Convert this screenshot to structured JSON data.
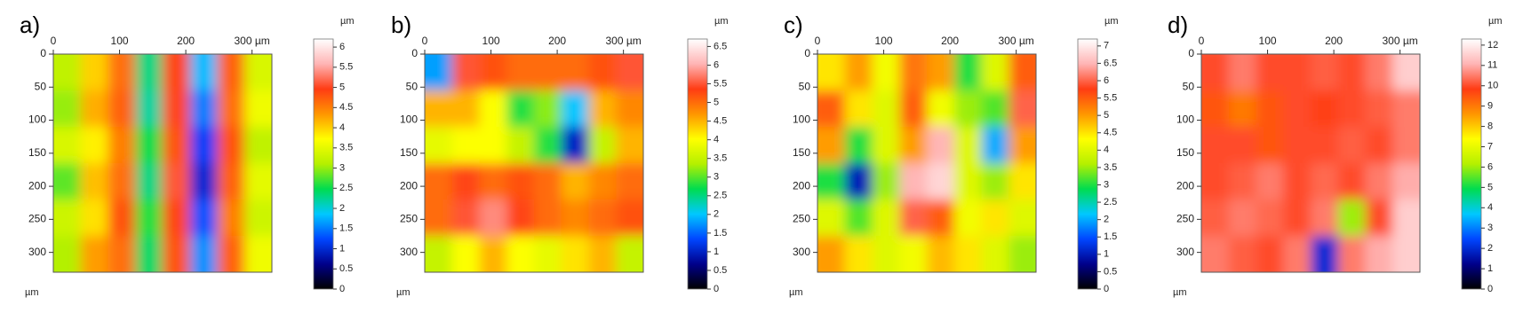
{
  "chart_data": [
    {
      "type": "heatmap",
      "panel_label": "a)",
      "x_unit_label": "µm",
      "colorbar_label": "µm",
      "xlim": [
        0,
        330
      ],
      "ylim": [
        0,
        330
      ],
      "xticks": [
        0,
        100,
        200,
        {
          "value": 300,
          "label": "300 µm"
        }
      ],
      "yticks": [
        0,
        50,
        100,
        150,
        200,
        250,
        300
      ],
      "clim": [
        0,
        6.2
      ],
      "cticks": [
        0,
        0.5,
        1,
        1.5,
        2,
        2.5,
        3,
        3.5,
        4,
        4.5,
        5,
        5.5,
        6
      ],
      "colormap": [
        "#000000",
        "#00008b",
        "#0046ff",
        "#00c8ff",
        "#00dc50",
        "#b4f000",
        "#ffff00",
        "#ff9600",
        "#ff3c14",
        "#ffb4b4",
        "#ffffff"
      ],
      "z": [
        [
          3.2,
          4.0,
          4.6,
          2.3,
          4.9,
          1.8,
          4.7,
          3.4
        ],
        [
          3.0,
          4.2,
          4.7,
          2.2,
          5.0,
          1.5,
          4.6,
          3.6
        ],
        [
          3.4,
          3.8,
          4.5,
          2.5,
          4.8,
          1.2,
          4.8,
          3.2
        ],
        [
          2.8,
          4.1,
          4.6,
          2.3,
          5.1,
          1.0,
          4.7,
          3.5
        ],
        [
          3.3,
          3.9,
          4.8,
          2.6,
          4.9,
          1.3,
          4.5,
          3.3
        ],
        [
          3.1,
          4.3,
          4.6,
          2.4,
          4.8,
          1.6,
          4.7,
          3.6
        ]
      ]
    },
    {
      "type": "heatmap",
      "panel_label": "b)",
      "x_unit_label": "µm",
      "colorbar_label": "µm",
      "xlim": [
        0,
        330
      ],
      "ylim": [
        0,
        330
      ],
      "xticks": [
        0,
        100,
        200,
        {
          "value": 300,
          "label": "300 µm"
        }
      ],
      "yticks": [
        0,
        50,
        100,
        150,
        200,
        250,
        300
      ],
      "clim": [
        0,
        6.7
      ],
      "cticks": [
        0,
        0.5,
        1,
        1.5,
        2,
        2.5,
        3,
        3.5,
        4,
        4.5,
        5,
        5.5,
        6,
        6.5
      ],
      "colormap": [
        "#000000",
        "#00008b",
        "#0046ff",
        "#00c8ff",
        "#00dc50",
        "#b4f000",
        "#ffff00",
        "#ff9600",
        "#ff3c14",
        "#ffb4b4",
        "#ffffff"
      ],
      "z": [
        [
          1.8,
          5.5,
          5.2,
          5.0,
          5.0,
          5.0,
          5.2,
          5.5
        ],
        [
          4.5,
          4.5,
          4.0,
          2.8,
          3.2,
          2.0,
          4.5,
          4.8
        ],
        [
          3.8,
          4.0,
          4.0,
          3.5,
          2.8,
          1.0,
          3.5,
          4.5
        ],
        [
          5.0,
          5.3,
          5.0,
          5.2,
          5.0,
          4.5,
          4.8,
          5.0
        ],
        [
          5.0,
          5.5,
          5.8,
          5.3,
          5.0,
          4.8,
          5.0,
          5.2
        ],
        [
          3.5,
          4.0,
          4.5,
          4.0,
          3.8,
          4.2,
          4.5,
          3.5
        ]
      ]
    },
    {
      "type": "heatmap",
      "panel_label": "c)",
      "x_unit_label": "µm",
      "colorbar_label": "µm",
      "xlim": [
        0,
        330
      ],
      "ylim": [
        0,
        330
      ],
      "xticks": [
        0,
        100,
        200,
        {
          "value": 300,
          "label": "300 µm"
        }
      ],
      "yticks": [
        0,
        50,
        100,
        150,
        200,
        250,
        300
      ],
      "clim": [
        0,
        7.2
      ],
      "cticks": [
        0,
        0.5,
        1,
        1.5,
        2,
        2.5,
        3,
        3.5,
        4,
        4.5,
        5,
        5.5,
        6,
        6.5,
        7
      ],
      "colormap": [
        "#000000",
        "#00008b",
        "#0046ff",
        "#00c8ff",
        "#00dc50",
        "#b4f000",
        "#ffff00",
        "#ff9600",
        "#ff3c14",
        "#ffb4b4",
        "#ffffff"
      ],
      "z": [
        [
          4.5,
          5.0,
          4.2,
          5.3,
          5.0,
          3.0,
          4.0,
          5.5
        ],
        [
          5.5,
          4.5,
          4.0,
          5.5,
          4.2,
          3.5,
          3.2,
          6.0
        ],
        [
          5.0,
          3.0,
          4.0,
          5.0,
          6.5,
          4.0,
          2.0,
          5.0
        ],
        [
          3.0,
          1.0,
          3.5,
          6.5,
          6.8,
          4.0,
          3.5,
          4.5
        ],
        [
          4.0,
          3.2,
          4.0,
          6.0,
          5.5,
          4.2,
          4.5,
          4.0
        ],
        [
          5.0,
          4.5,
          4.0,
          4.2,
          4.8,
          4.5,
          4.0,
          3.5
        ]
      ]
    },
    {
      "type": "heatmap",
      "panel_label": "d)",
      "x_unit_label": "µm",
      "colorbar_label": "µm",
      "xlim": [
        0,
        330
      ],
      "ylim": [
        0,
        330
      ],
      "xticks": [
        0,
        100,
        200,
        {
          "value": 300,
          "label": "300 µm"
        }
      ],
      "yticks": [
        0,
        50,
        100,
        150,
        200,
        250,
        300
      ],
      "clim": [
        0,
        12.3
      ],
      "cticks": [
        0,
        1,
        2,
        3,
        4,
        5,
        6,
        7,
        8,
        9,
        10,
        11,
        12
      ],
      "colormap": [
        "#000000",
        "#00008b",
        "#0046ff",
        "#00c8ff",
        "#00dc50",
        "#b4f000",
        "#ffff00",
        "#ff9600",
        "#ff3c14",
        "#ffb4b4",
        "#ffffff"
      ],
      "z": [
        [
          10.0,
          10.5,
          10.0,
          10.0,
          10.2,
          10.0,
          10.5,
          11.5
        ],
        [
          9.5,
          9.0,
          9.5,
          10.0,
          9.8,
          10.0,
          10.2,
          10.5
        ],
        [
          10.0,
          10.0,
          9.5,
          10.0,
          10.0,
          10.2,
          10.0,
          10.5
        ],
        [
          10.0,
          10.2,
          10.5,
          10.0,
          10.3,
          10.0,
          10.5,
          11.0
        ],
        [
          10.2,
          10.5,
          10.3,
          10.0,
          10.5,
          6.0,
          10.0,
          11.5
        ],
        [
          10.5,
          10.2,
          10.0,
          10.5,
          2.0,
          10.5,
          11.0,
          11.5
        ]
      ]
    }
  ]
}
